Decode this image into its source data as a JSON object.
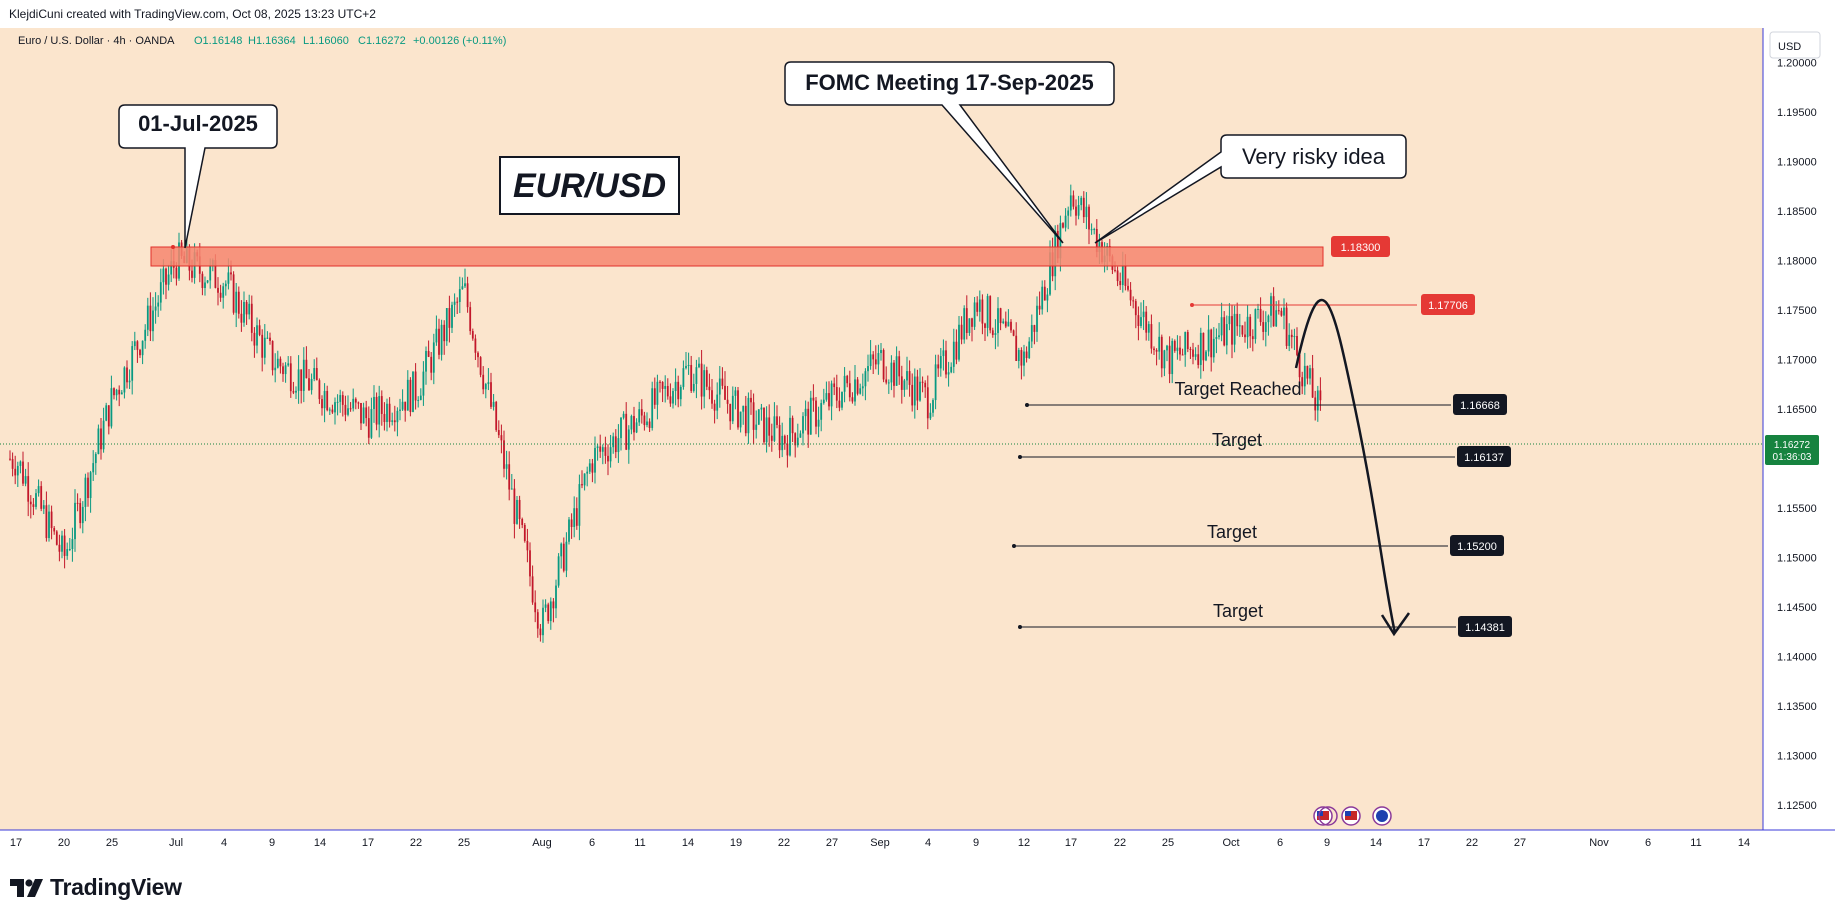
{
  "header": {
    "attribution": "KlejdiCuni created with TradingView.com, Oct 08, 2025 13:23 UTC+2"
  },
  "legend": {
    "symbol": "Euro / U.S. Dollar · 4h · OANDA",
    "open": "O1.16148",
    "high": "H1.16364",
    "low": "L1.16060",
    "close": "C1.16272",
    "change": "+0.00126 (+0.11%)"
  },
  "currency_label": "USD",
  "price_badge": {
    "price": "1.16272",
    "countdown": "01:36:03"
  },
  "footer": {
    "brand": "TradingView"
  },
  "colors": {
    "background": "#fbe5cd",
    "up": "#089981",
    "down": "#c2172a",
    "zone_fill": "#f6866f",
    "zone_border": "#e0302a",
    "resistance_line": "#e53935",
    "axis_line": "#3a3ad8",
    "current_price": "#16833f"
  },
  "chart_data": {
    "type": "candlestick",
    "symbol": "EURUSD",
    "timeframe": "4h",
    "ylim": [
      1.1225,
      1.2035
    ],
    "price_axis_ticks": [
      "1.20000",
      "1.19500",
      "1.19000",
      "1.18500",
      "1.18000",
      "1.17500",
      "1.17000",
      "1.16500",
      "1.16000",
      "1.15500",
      "1.15000",
      "1.14500",
      "1.14000",
      "1.13500",
      "1.13000",
      "1.12500"
    ],
    "time_axis_ticks": [
      "17",
      "20",
      "25",
      "Jul",
      "4",
      "9",
      "14",
      "17",
      "22",
      "25",
      "Aug",
      "6",
      "11",
      "14",
      "19",
      "22",
      "27",
      "Sep",
      "4",
      "9",
      "12",
      "17",
      "22",
      "25",
      "Oct",
      "6",
      "9",
      "14",
      "17",
      "22",
      "27",
      "Nov",
      "6",
      "11",
      "14"
    ],
    "price_path": [
      [
        "17",
        1.16
      ],
      [
        "20",
        1.15
      ],
      [
        "25",
        1.166
      ],
      [
        "Jul",
        1.18
      ],
      [
        "4",
        1.178
      ],
      [
        "9",
        1.17
      ],
      [
        "14",
        1.167
      ],
      [
        "17",
        1.164
      ],
      [
        "22",
        1.167
      ],
      [
        "25",
        1.177
      ],
      [
        "Aug",
        1.143
      ],
      [
        "6",
        1.16
      ],
      [
        "11",
        1.164
      ],
      [
        "14",
        1.169
      ],
      [
        "19",
        1.165
      ],
      [
        "22",
        1.162
      ],
      [
        "27",
        1.166
      ],
      [
        "Sep",
        1.17
      ],
      [
        "4",
        1.166
      ],
      [
        "9",
        1.176
      ],
      [
        "12",
        1.17
      ],
      [
        "17",
        1.187
      ],
      [
        "22",
        1.178
      ],
      [
        "25",
        1.17
      ],
      [
        "Oct",
        1.173
      ],
      [
        "6",
        1.175
      ],
      [
        "9",
        1.1627
      ]
    ],
    "title": "EUR/USD",
    "annotations": [
      {
        "label": "01-Jul-2025"
      },
      {
        "label": "FOMC Meeting 17-Sep-2025"
      },
      {
        "label": "Very risky idea"
      }
    ],
    "zone": {
      "price": "1.18300",
      "value": 1.183
    },
    "resistance": {
      "price": "1.17706",
      "value": 1.17706
    },
    "targets": [
      {
        "label": "Target Reached",
        "price": "1.16668",
        "value": 1.16668
      },
      {
        "label": "Target",
        "price": "1.16137",
        "value": 1.16137
      },
      {
        "label": "Target",
        "price": "1.15200",
        "value": 1.152
      },
      {
        "label": "Target",
        "price": "1.14381",
        "value": 1.14381
      }
    ],
    "current_price": 1.16272,
    "projection": "arrow down from 1.1770 toward 1.1438"
  }
}
